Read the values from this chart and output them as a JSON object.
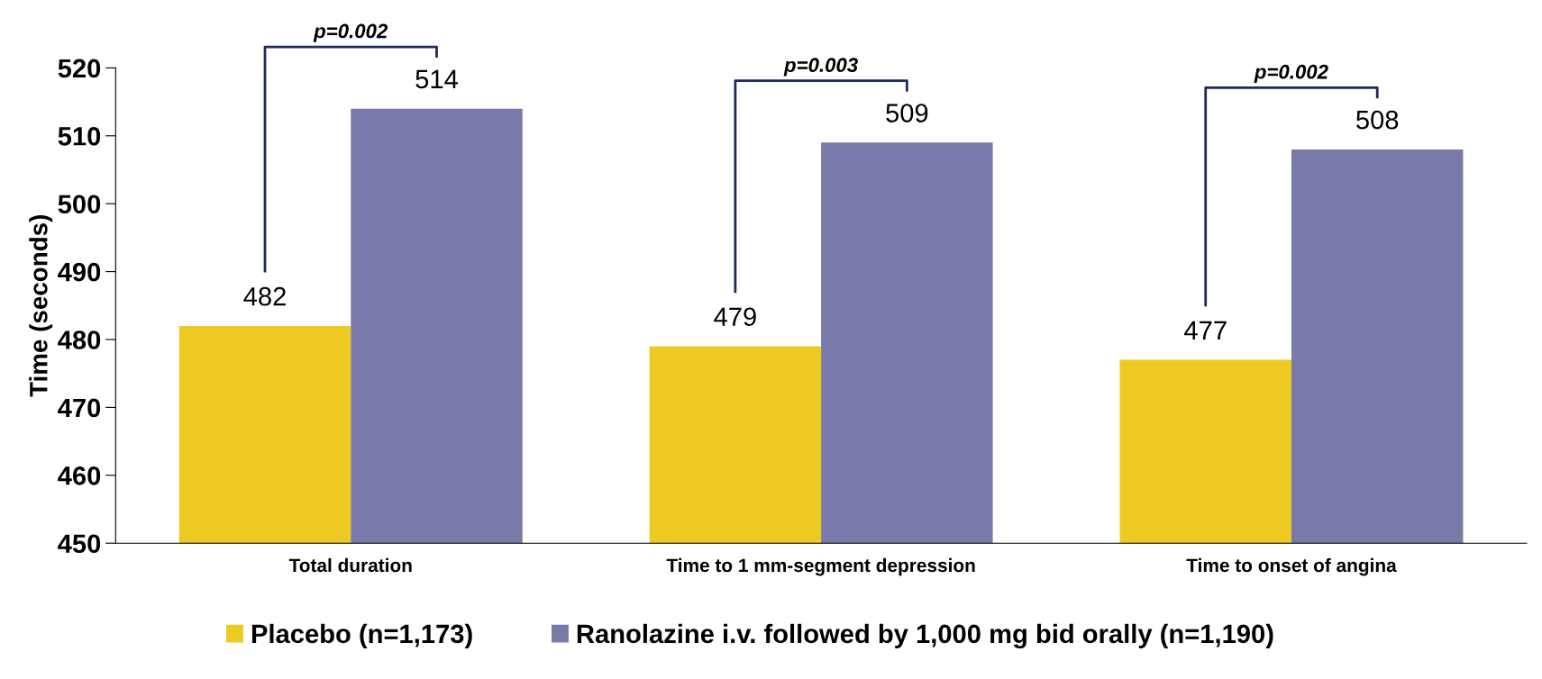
{
  "chart_data": {
    "type": "bar",
    "ylabel": "Time (seconds)",
    "categories": [
      "Total duration",
      "Time to 1 mm-segment depression",
      "Time to onset of angina"
    ],
    "series": [
      {
        "name": "Placebo (n=1,173)",
        "color": "#ecca22",
        "values": [
          482,
          479,
          477
        ]
      },
      {
        "name": "Ranolazine i.v. followed by 1,000 mg bid orally (n=1,190)",
        "color": "#7a7aaa",
        "values": [
          514,
          509,
          508
        ]
      }
    ],
    "ylim": [
      450,
      520
    ],
    "yticks": [
      450,
      460,
      470,
      480,
      490,
      500,
      510,
      520
    ],
    "data_labels": true,
    "grid": false,
    "legend": "bottom",
    "annotations": [
      "p=0.002",
      "p=0.003",
      "p=0.002"
    ]
  }
}
